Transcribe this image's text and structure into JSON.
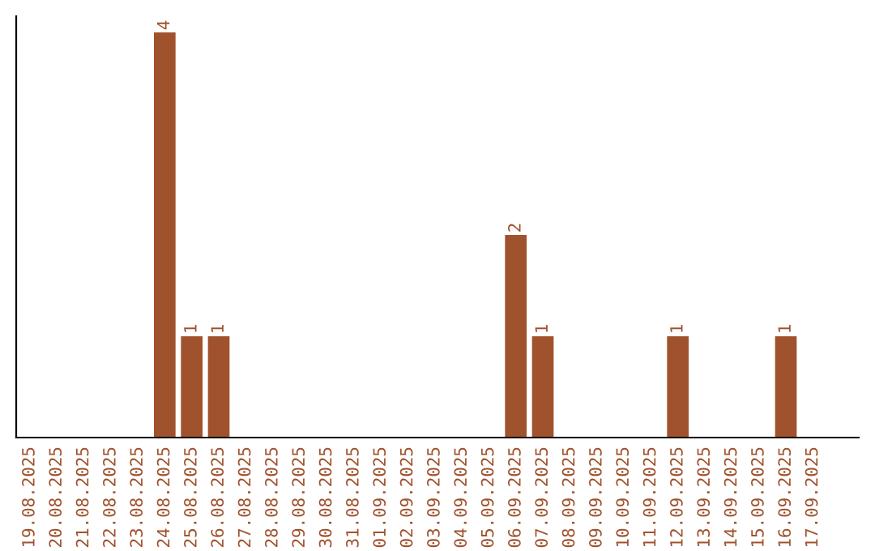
{
  "chart_data": {
    "type": "bar",
    "categories": [
      "19.08.2025",
      "20.08.2025",
      "21.08.2025",
      "22.08.2025",
      "23.08.2025",
      "24.08.2025",
      "25.08.2025",
      "26.08.2025",
      "27.08.2025",
      "28.08.2025",
      "29.08.2025",
      "30.08.2025",
      "31.08.2025",
      "01.09.2025",
      "02.09.2025",
      "03.09.2025",
      "04.09.2025",
      "05.09.2025",
      "06.09.2025",
      "07.09.2025",
      "08.09.2025",
      "09.09.2025",
      "10.09.2025",
      "11.09.2025",
      "12.09.2025",
      "13.09.2025",
      "14.09.2025",
      "15.09.2025",
      "16.09.2025",
      "17.09.2025"
    ],
    "values": [
      0,
      0,
      0,
      0,
      0,
      4,
      1,
      1,
      0,
      0,
      0,
      0,
      0,
      0,
      0,
      0,
      0,
      0,
      2,
      1,
      0,
      0,
      0,
      0,
      1,
      0,
      0,
      0,
      1,
      0
    ],
    "value_labels": [
      null,
      null,
      null,
      null,
      null,
      "4",
      "1",
      "1",
      null,
      null,
      null,
      null,
      null,
      null,
      null,
      null,
      null,
      null,
      "2",
      "1",
      null,
      null,
      null,
      null,
      "1",
      null,
      null,
      null,
      "1",
      null
    ],
    "color": "#a0522d",
    "tick_labels": "x",
    "grid": false,
    "legend": false
  }
}
